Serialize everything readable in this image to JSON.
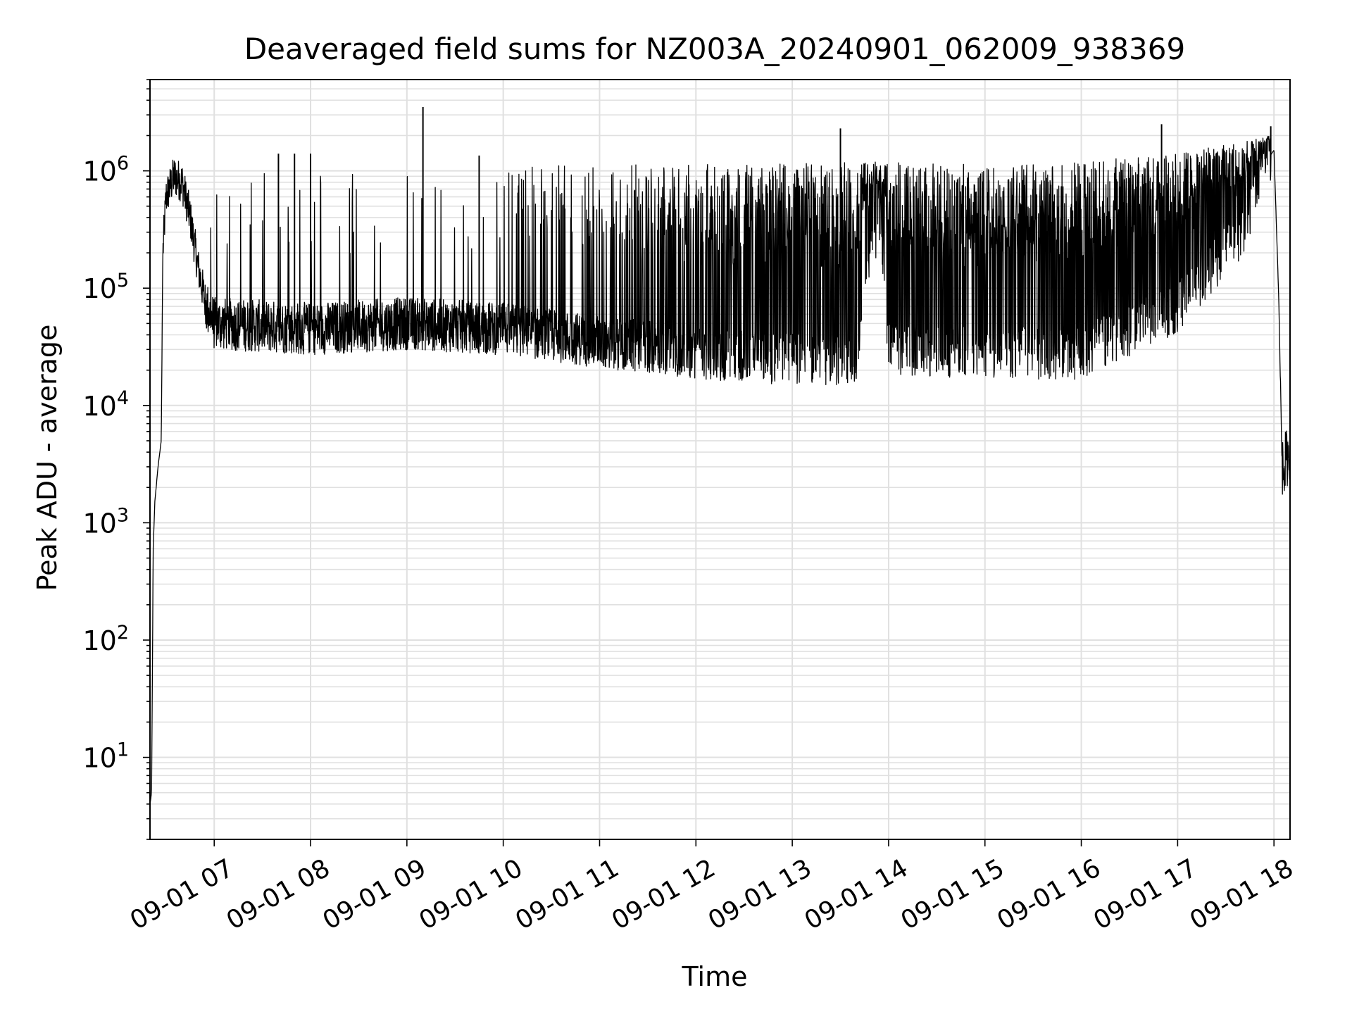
{
  "chart_data": {
    "type": "line",
    "title": "Deaveraged field sums for NZ003A_20240901_062009_938369",
    "xlabel": "Time",
    "ylabel": "Peak ADU - average",
    "yscale": "log",
    "ylim": [
      2,
      6000000
    ],
    "xlim": [
      "2024-09-01 06:20",
      "2024-09-01 18:10"
    ],
    "grid": true,
    "line_color": "#000000",
    "grid_color": "#e0e0e0",
    "x_ticks": [
      {
        "value": "2024-09-01 07:00",
        "label": "09-01 07"
      },
      {
        "value": "2024-09-01 08:00",
        "label": "09-01 08"
      },
      {
        "value": "2024-09-01 09:00",
        "label": "09-01 09"
      },
      {
        "value": "2024-09-01 10:00",
        "label": "09-01 10"
      },
      {
        "value": "2024-09-01 11:00",
        "label": "09-01 11"
      },
      {
        "value": "2024-09-01 12:00",
        "label": "09-01 12"
      },
      {
        "value": "2024-09-01 13:00",
        "label": "09-01 13"
      },
      {
        "value": "2024-09-01 14:00",
        "label": "09-01 14"
      },
      {
        "value": "2024-09-01 15:00",
        "label": "09-01 15"
      },
      {
        "value": "2024-09-01 16:00",
        "label": "09-01 16"
      },
      {
        "value": "2024-09-01 17:00",
        "label": "09-01 17"
      },
      {
        "value": "2024-09-01 18:00",
        "label": "09-01 18"
      }
    ],
    "y_ticks": [
      {
        "value": 10,
        "base": "10",
        "exp": "1"
      },
      {
        "value": 100,
        "base": "10",
        "exp": "2"
      },
      {
        "value": 1000,
        "base": "10",
        "exp": "3"
      },
      {
        "value": 10000,
        "base": "10",
        "exp": "4"
      },
      {
        "value": 100000,
        "base": "10",
        "exp": "5"
      },
      {
        "value": 1000000,
        "base": "10",
        "exp": "6"
      }
    ],
    "series": [
      {
        "baseline": [
          [
            "2024-09-01 06:20",
            4
          ],
          [
            "2024-09-01 06:21",
            5
          ],
          [
            "2024-09-01 06:22",
            600
          ],
          [
            "2024-09-01 06:23",
            1500
          ],
          [
            "2024-09-01 06:25",
            3000
          ],
          [
            "2024-09-01 06:27",
            5000
          ],
          [
            "2024-09-01 06:28",
            200000
          ],
          [
            "2024-09-01 06:30",
            600000
          ],
          [
            "2024-09-01 06:35",
            900000
          ],
          [
            "2024-09-01 06:40",
            800000
          ],
          [
            "2024-09-01 06:45",
            400000
          ],
          [
            "2024-09-01 06:50",
            150000
          ],
          [
            "2024-09-01 06:55",
            70000
          ],
          [
            "2024-09-01 07:00",
            50000
          ],
          [
            "2024-09-01 08:00",
            45000
          ],
          [
            "2024-09-01 09:00",
            50000
          ],
          [
            "2024-09-01 10:00",
            45000
          ],
          [
            "2024-09-01 11:00",
            35000
          ],
          [
            "2024-09-01 12:00",
            28000
          ],
          [
            "2024-09-01 13:00",
            25000
          ],
          [
            "2024-09-01 13:40",
            25000
          ],
          [
            "2024-09-01 13:45",
            150000
          ],
          [
            "2024-09-01 13:55",
            400000
          ],
          [
            "2024-09-01 14:00",
            30000
          ],
          [
            "2024-09-01 15:00",
            28000
          ],
          [
            "2024-09-01 16:00",
            28000
          ],
          [
            "2024-09-01 17:00",
            70000
          ],
          [
            "2024-09-01 17:40",
            300000
          ],
          [
            "2024-09-01 17:55",
            1200000
          ],
          [
            "2024-09-01 18:00",
            1500000
          ],
          [
            "2024-09-01 18:03",
            80000
          ],
          [
            "2024-09-01 18:05",
            3000
          ],
          [
            "2024-09-01 18:10",
            4000
          ]
        ],
        "upper_envelope": [
          [
            "2024-09-01 06:30",
            1000000
          ],
          [
            "2024-09-01 07:00",
            1000000
          ],
          [
            "2024-09-01 08:00",
            1000000
          ],
          [
            "2024-09-01 09:00",
            1100000
          ],
          [
            "2024-09-01 10:00",
            1150000
          ],
          [
            "2024-09-01 11:00",
            1150000
          ],
          [
            "2024-09-01 12:00",
            1150000
          ],
          [
            "2024-09-01 13:00",
            1150000
          ],
          [
            "2024-09-01 14:00",
            1200000
          ],
          [
            "2024-09-01 15:00",
            1150000
          ],
          [
            "2024-09-01 16:00",
            1200000
          ],
          [
            "2024-09-01 17:00",
            1400000
          ],
          [
            "2024-09-01 18:00",
            2000000
          ]
        ],
        "spikes": [
          [
            "2024-09-01 09:10",
            3500000
          ],
          [
            "2024-09-01 13:30",
            2300000
          ],
          [
            "2024-09-01 16:50",
            2500000
          ],
          [
            "2024-09-01 17:58",
            2400000
          ],
          [
            "2024-09-01 07:40",
            1400000
          ],
          [
            "2024-09-01 07:50",
            1400000
          ],
          [
            "2024-09-01 08:00",
            1400000
          ],
          [
            "2024-09-01 09:45",
            1350000
          ]
        ]
      }
    ]
  }
}
